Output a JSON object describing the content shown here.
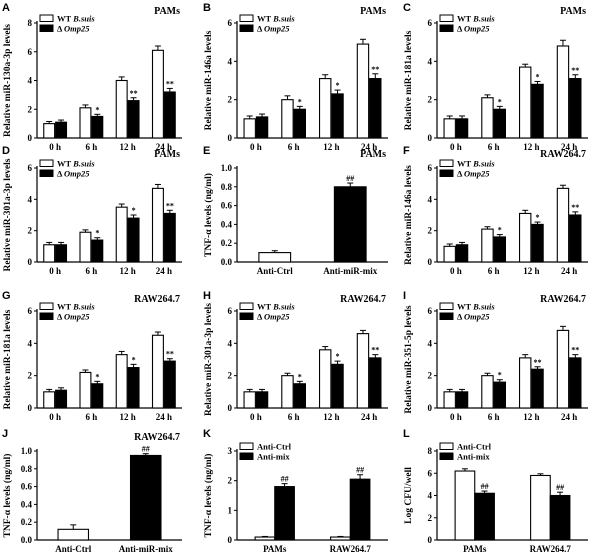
{
  "chart_data": [
    {
      "panel": "A",
      "type": "bar",
      "title": "PAMs",
      "ylabel": "Relative miR-130a-3p levels",
      "ylim": [
        0,
        8
      ],
      "yticks": [
        0,
        2,
        4,
        6,
        8
      ],
      "categories": [
        "0 h",
        "6 h",
        "12 h",
        "24 h"
      ],
      "legend": [
        {
          "prefix": "WT ",
          "italic": "B.suis"
        },
        {
          "prefix": "Δ ",
          "italic": "Omp25"
        }
      ],
      "series": [
        {
          "name": "WT B.suis",
          "values": [
            1.0,
            2.1,
            4.0,
            6.1
          ],
          "errors": [
            0.15,
            0.2,
            0.25,
            0.3
          ],
          "annotations": [
            "",
            "",
            "",
            ""
          ]
        },
        {
          "name": "Δ Omp25",
          "values": [
            1.1,
            1.5,
            2.6,
            3.2
          ],
          "errors": [
            0.15,
            0.15,
            0.2,
            0.25
          ],
          "annotations": [
            "",
            "*",
            "**",
            "**"
          ]
        }
      ]
    },
    {
      "panel": "B",
      "type": "bar",
      "title": "PAMs",
      "ylabel": "Relative miR-146a levels",
      "ylim": [
        0,
        6
      ],
      "yticks": [
        0,
        2,
        4,
        6
      ],
      "categories": [
        "0 h",
        "6 h",
        "12 h",
        "24 h"
      ],
      "legend": [
        {
          "prefix": "WT ",
          "italic": "B.suis"
        },
        {
          "prefix": "Δ ",
          "italic": "Omp25"
        }
      ],
      "series": [
        {
          "name": "WT B.suis",
          "values": [
            1.0,
            2.0,
            3.1,
            4.9
          ],
          "errors": [
            0.15,
            0.2,
            0.2,
            0.25
          ],
          "annotations": [
            "",
            "",
            "",
            ""
          ]
        },
        {
          "name": "Δ Omp25",
          "values": [
            1.1,
            1.5,
            2.3,
            3.1
          ],
          "errors": [
            0.15,
            0.15,
            0.2,
            0.25
          ],
          "annotations": [
            "",
            "*",
            "*",
            "**"
          ]
        }
      ]
    },
    {
      "panel": "C",
      "type": "bar",
      "title": "PAMs",
      "ylabel": "Relative miR-181a levels",
      "ylim": [
        0,
        6
      ],
      "yticks": [
        0,
        2,
        4,
        6
      ],
      "categories": [
        "0 h",
        "6 h",
        "12 h",
        "24 h"
      ],
      "legend": [
        {
          "prefix": "WT ",
          "italic": "B.suis"
        },
        {
          "prefix": "Δ ",
          "italic": "Omp25"
        }
      ],
      "series": [
        {
          "name": "WT B.suis",
          "values": [
            1.0,
            2.1,
            3.7,
            4.8
          ],
          "errors": [
            0.15,
            0.15,
            0.15,
            0.3
          ],
          "annotations": [
            "",
            "",
            "",
            ""
          ]
        },
        {
          "name": "Δ Omp25",
          "values": [
            1.0,
            1.5,
            2.8,
            3.1
          ],
          "errors": [
            0.15,
            0.15,
            0.15,
            0.2
          ],
          "annotations": [
            "",
            "*",
            "*",
            "**"
          ]
        }
      ]
    },
    {
      "panel": "D",
      "type": "bar",
      "title": "PAMs",
      "ylabel": "Relative miR-301a-3p levels",
      "ylim": [
        0,
        6
      ],
      "yticks": [
        0,
        2,
        4,
        6
      ],
      "categories": [
        "0 h",
        "6 h",
        "12 h",
        "24 h"
      ],
      "legend": [
        {
          "prefix": "WT ",
          "italic": "B.suis"
        },
        {
          "prefix": "Δ ",
          "italic": "Omp25"
        }
      ],
      "series": [
        {
          "name": "WT B.suis",
          "values": [
            1.1,
            1.9,
            3.5,
            4.7
          ],
          "errors": [
            0.15,
            0.15,
            0.2,
            0.25
          ],
          "annotations": [
            "",
            "",
            "",
            ""
          ]
        },
        {
          "name": "Δ Omp25",
          "values": [
            1.1,
            1.4,
            2.8,
            3.1
          ],
          "errors": [
            0.15,
            0.15,
            0.2,
            0.2
          ],
          "annotations": [
            "",
            "*",
            "*",
            "**"
          ]
        }
      ]
    },
    {
      "panel": "E",
      "type": "bar",
      "title": "PAMs",
      "ylabel": "TNF-α levels (ng/ml)",
      "ylim": [
        0,
        1.0
      ],
      "yticks": [
        0.0,
        0.2,
        0.4,
        0.6,
        0.8,
        1.0
      ],
      "categories": [
        "Anti-Ctrl",
        "Anti-miR-mix"
      ],
      "series": [
        {
          "name": "",
          "values": [
            0.1,
            0.8
          ],
          "errors": [
            0.02,
            0.04
          ],
          "annotations": [
            "",
            "##"
          ]
        }
      ]
    },
    {
      "panel": "F",
      "type": "bar",
      "title": "RAW264.7",
      "ylabel": "Relative miR-146a levels",
      "ylim": [
        0,
        6
      ],
      "yticks": [
        0,
        2,
        4,
        6
      ],
      "categories": [
        "0 h",
        "6 h",
        "12 h",
        "24 h"
      ],
      "legend": [
        {
          "prefix": "WT ",
          "italic": "B.suis"
        },
        {
          "prefix": "Δ ",
          "italic": "Omp25"
        }
      ],
      "series": [
        {
          "name": "WT B.suis",
          "values": [
            1.0,
            2.1,
            3.1,
            4.7
          ],
          "errors": [
            0.15,
            0.15,
            0.2,
            0.2
          ],
          "annotations": [
            "",
            "",
            "",
            ""
          ]
        },
        {
          "name": "Δ Omp25",
          "values": [
            1.1,
            1.6,
            2.4,
            3.0
          ],
          "errors": [
            0.15,
            0.15,
            0.15,
            0.2
          ],
          "annotations": [
            "",
            "*",
            "*",
            "**"
          ]
        }
      ]
    },
    {
      "panel": "G",
      "type": "bar",
      "title": "RAW264.7",
      "ylabel": "Relative miR-181a levels",
      "ylim": [
        0,
        6
      ],
      "yticks": [
        0,
        2,
        4,
        6
      ],
      "categories": [
        "0 h",
        "6 h",
        "12 h",
        "24 h"
      ],
      "legend": [
        {
          "prefix": "WT ",
          "italic": "B.suis"
        },
        {
          "prefix": "Δ ",
          "italic": "Omp25"
        }
      ],
      "series": [
        {
          "name": "WT B.suis",
          "values": [
            1.0,
            2.2,
            3.3,
            4.5
          ],
          "errors": [
            0.15,
            0.15,
            0.2,
            0.2
          ],
          "annotations": [
            "",
            "",
            "",
            ""
          ]
        },
        {
          "name": "Δ Omp25",
          "values": [
            1.1,
            1.5,
            2.5,
            2.9
          ],
          "errors": [
            0.15,
            0.15,
            0.2,
            0.15
          ],
          "annotations": [
            "",
            "*",
            "*",
            "**"
          ]
        }
      ]
    },
    {
      "panel": "H",
      "type": "bar",
      "title": "RAW264.7",
      "ylabel": "Relative miR-301a-3p levels",
      "ylim": [
        0,
        6
      ],
      "yticks": [
        0,
        2,
        4,
        6
      ],
      "categories": [
        "0 h",
        "6 h",
        "12 h",
        "24 h"
      ],
      "legend": [
        {
          "prefix": "WT ",
          "italic": "B.suis"
        },
        {
          "prefix": "Δ ",
          "italic": "Omp25"
        }
      ],
      "series": [
        {
          "name": "WT B.suis",
          "values": [
            1.0,
            2.0,
            3.6,
            4.6
          ],
          "errors": [
            0.15,
            0.15,
            0.2,
            0.2
          ],
          "annotations": [
            "",
            "",
            "",
            ""
          ]
        },
        {
          "name": "Δ Omp25",
          "values": [
            1.0,
            1.5,
            2.7,
            3.1
          ],
          "errors": [
            0.15,
            0.15,
            0.2,
            0.2
          ],
          "annotations": [
            "",
            "*",
            "*",
            "**"
          ]
        }
      ]
    },
    {
      "panel": "I",
      "type": "bar",
      "title": "",
      "ylabel": "Relative miR-351-5p levels",
      "ylim": [
        0,
        6
      ],
      "yticks": [
        0,
        2,
        4,
        6
      ],
      "categories": [
        "0 h",
        "6 h",
        "12 h",
        "24 h"
      ],
      "legend": [
        {
          "prefix": "WT ",
          "italic": "B.suis"
        },
        {
          "prefix": "Δ ",
          "italic": "Omp25"
        }
      ],
      "series": [
        {
          "name": "WT B.suis",
          "values": [
            1.0,
            2.0,
            3.1,
            4.8
          ],
          "errors": [
            0.15,
            0.15,
            0.2,
            0.25
          ],
          "annotations": [
            "",
            "",
            "",
            ""
          ]
        },
        {
          "name": "Δ Omp25",
          "values": [
            1.0,
            1.6,
            2.4,
            3.1
          ],
          "errors": [
            0.15,
            0.15,
            0.15,
            0.2
          ],
          "annotations": [
            "",
            "*",
            "**",
            "**"
          ]
        }
      ]
    },
    {
      "panel": "J",
      "type": "bar",
      "title": "RAW264.7",
      "ylabel": "TNF-α levels (ng/ml)",
      "ylim": [
        0,
        1.0
      ],
      "yticks": [
        0.0,
        0.2,
        0.4,
        0.6,
        0.8,
        1.0
      ],
      "categories": [
        "Anti-Ctrl",
        "Anti-miR-mix"
      ],
      "series": [
        {
          "name": "",
          "values": [
            0.12,
            0.95
          ],
          "errors": [
            0.05,
            0.02
          ],
          "annotations": [
            "",
            "##"
          ]
        }
      ]
    },
    {
      "panel": "K",
      "type": "bar",
      "title": "",
      "ylabel": "TNF-α levels (ng/ml)",
      "ylim": [
        0,
        3
      ],
      "yticks": [
        0,
        1,
        2,
        3
      ],
      "categories": [
        "PAMs",
        "RAW264.7"
      ],
      "legend": [
        {
          "prefix": "Anti-Ctrl",
          "italic": ""
        },
        {
          "prefix": "Anti-mix",
          "italic": ""
        }
      ],
      "series": [
        {
          "name": "Anti-Ctrl",
          "values": [
            0.1,
            0.1
          ],
          "errors": [
            0.02,
            0.02
          ],
          "annotations": [
            "",
            ""
          ]
        },
        {
          "name": "Anti-mix",
          "values": [
            1.8,
            2.05
          ],
          "errors": [
            0.1,
            0.15
          ],
          "annotations": [
            "##",
            "##"
          ]
        }
      ]
    },
    {
      "panel": "L",
      "type": "bar",
      "title": "",
      "ylabel": "Log CFU/well",
      "ylim": [
        0,
        8
      ],
      "yticks": [
        0,
        2,
        4,
        6,
        8
      ],
      "categories": [
        "PAMs",
        "RAW264.7"
      ],
      "legend": [
        {
          "prefix": "Anti-Ctrl",
          "italic": ""
        },
        {
          "prefix": "Anti-mix",
          "italic": ""
        }
      ],
      "series": [
        {
          "name": "Anti-Ctrl",
          "values": [
            6.2,
            5.8
          ],
          "errors": [
            0.2,
            0.15
          ],
          "annotations": [
            "",
            ""
          ]
        },
        {
          "name": "Anti-mix",
          "values": [
            4.2,
            4.0
          ],
          "errors": [
            0.2,
            0.3
          ],
          "annotations": [
            "##",
            "##"
          ]
        }
      ]
    },
    {
      "panel": "",
      "type": "bar",
      "title": "RAW264.7",
      "ylabel": "",
      "ylim": [
        0,
        1
      ],
      "yticks": [],
      "categories": [],
      "series": []
    }
  ]
}
